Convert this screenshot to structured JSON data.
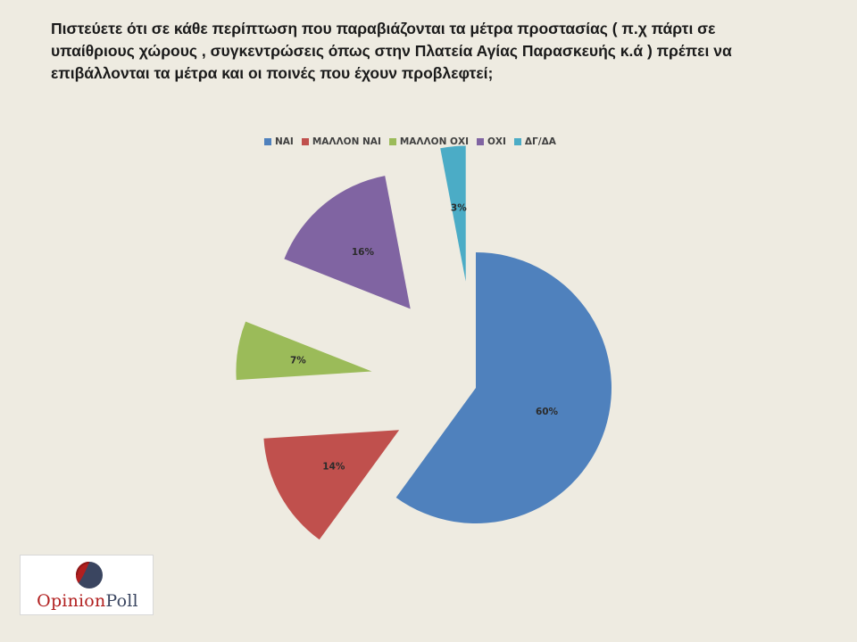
{
  "question": "Πιστεύετε ότι σε κάθε περίπτωση που παραβιάζονται τα μέτρα προστασίας ( π.χ πάρτι σε υπαίθριους χώρους , συγκεντρώσεις όπως στην Πλατεία Αγίας Παρασκευής κ.ά ) πρέπει να επιβάλλονται τα μέτρα και οι ποινές που έχουν προβλεφτεί;",
  "chart_data": {
    "type": "pie",
    "title": "",
    "categories": [
      "ΝΑΙ",
      "ΜΑΛΛΟΝ ΝΑΙ",
      "ΜΑΛΛΟΝ ΟΧΙ",
      "ΟΧΙ",
      "ΔΓ/ΔΑ"
    ],
    "values": [
      60,
      14,
      7,
      16,
      3
    ],
    "data_labels": [
      "60%",
      "14%",
      "7%",
      "16%",
      "3%"
    ],
    "colors": [
      "#4f81bd",
      "#c0504d",
      "#9bbb59",
      "#8064a2",
      "#4bacc6"
    ],
    "exploded": true,
    "legend_position": "top"
  },
  "logo": {
    "text_part1": "Opinion",
    "text_part2": "Poll",
    "colors": [
      "#b11f1f",
      "#3a4560"
    ]
  }
}
